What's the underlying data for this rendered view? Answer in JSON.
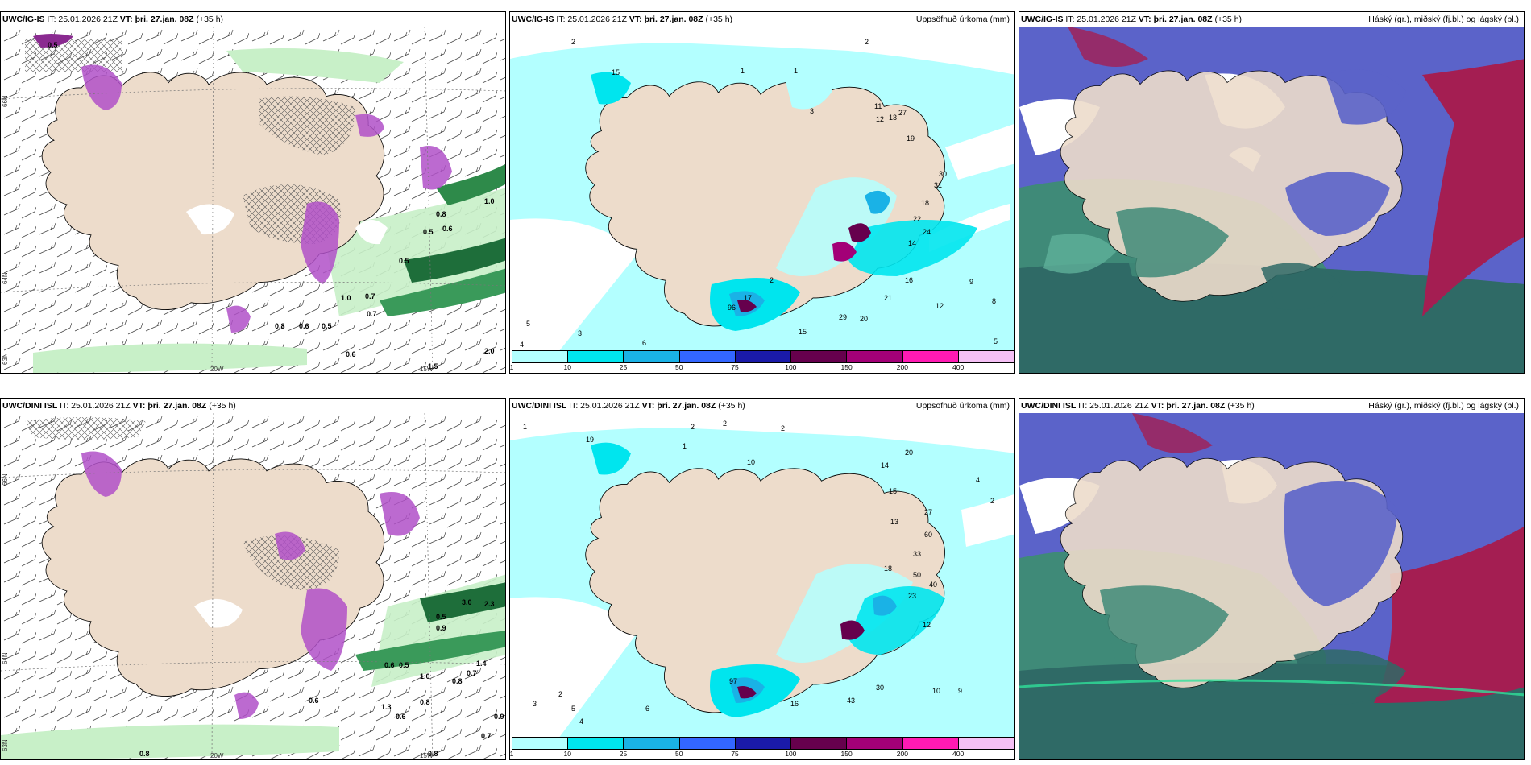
{
  "panels": {
    "top_left": {
      "title_model": "UWC/IG-IS",
      "title_it": "IT: 25.01.2026 21Z",
      "title_vt_label": "VT:",
      "title_vt": "þri. 27.jan. 08Z",
      "title_lead": "(+35 h)"
    },
    "top_mid": {
      "title_model": "UWC/IG-IS",
      "title_it": "IT: 25.01.2026 21Z",
      "title_vt_label": "VT:",
      "title_vt": "þri. 27.jan. 08Z",
      "title_lead": "(+35 h)",
      "field": "Uppsöfnuð úrkoma (mm)"
    },
    "top_right": {
      "title_model": "UWC/IG-IS",
      "title_it": "IT: 25.01.2026 21Z",
      "title_vt_label": "VT:",
      "title_vt": "þri. 27.jan. 08Z",
      "title_lead": "(+35 h)",
      "field": "Háský (gr.), miðský (fj.bl.) og lágský (bl.)"
    },
    "bot_left": {
      "title_model": "UWC/DINI ISL",
      "title_it": "IT: 25.01.2026 21Z",
      "title_vt_label": "VT:",
      "title_vt": "þri. 27.jan. 08Z",
      "title_lead": "(+35 h)"
    },
    "bot_mid": {
      "title_model": "UWC/DINI ISL",
      "title_it": "IT: 25.01.2026 21Z",
      "title_vt_label": "VT:",
      "title_vt": "þri. 27.jan. 08Z",
      "title_lead": "(+35 h)",
      "field": "Uppsöfnuð úrkoma (mm)"
    },
    "bot_right": {
      "title_model": "UWC/DINI ISL",
      "title_it": "IT: 25.01.2026 21Z",
      "title_vt_label": "VT:",
      "title_vt": "þri. 27.jan. 08Z",
      "title_lead": "(+35 h)",
      "field": "Háský (gr.), miðský (fj.bl.) og lágský (bl.)"
    }
  },
  "colorbar": {
    "colors": [
      "#b3ffff",
      "#00e5ee",
      "#1ab2e6",
      "#3366ff",
      "#1a1aa8",
      "#66004d",
      "#a30077",
      "#ff1ab3",
      "#f5c0f5"
    ],
    "ticks": [
      "1",
      "10",
      "25",
      "50",
      "75",
      "100",
      "150",
      "200",
      "400"
    ]
  },
  "axes": {
    "lon_20w": "20W",
    "lon_15w": "15W",
    "lat_66n": "66N",
    "lat_64n": "64N",
    "lat_63n": "63N"
  },
  "labels": {
    "tl_values": [
      "0.5",
      "1.0",
      "0.5",
      "0.7",
      "0.6",
      "0.8",
      "0.6",
      "0.5",
      "0.7",
      "0.5",
      "1.0",
      "0.6",
      "0.8",
      "2.0",
      "1.5"
    ],
    "bl_values": [
      "0.5",
      "0.9",
      "1.0",
      "0.6",
      "0.5",
      "0.8",
      "0.7",
      "1.4",
      "0.6",
      "0.8",
      "1.3",
      "0.6",
      "0.9",
      "0.7",
      "0.8",
      "0.8",
      "3.0",
      "2.3"
    ],
    "tm_values": [
      "2",
      "1",
      "15",
      "1",
      "3",
      "2",
      "11",
      "13",
      "27",
      "19",
      "12",
      "30",
      "31",
      "18",
      "22",
      "24",
      "14",
      "16",
      "2",
      "17",
      "96",
      "15",
      "29",
      "20",
      "21",
      "12",
      "9",
      "8",
      "5",
      "3",
      "4",
      "6",
      "5"
    ],
    "bm_values": [
      "1",
      "2",
      "2",
      "19",
      "2",
      "1",
      "10",
      "14",
      "20",
      "13",
      "27",
      "60",
      "33",
      "15",
      "4",
      "2",
      "18",
      "50",
      "40",
      "23",
      "12",
      "97",
      "16",
      "43",
      "30",
      "10",
      "9",
      "6",
      "5",
      "3",
      "2",
      "4"
    ]
  },
  "colors": {
    "land": "#eddccb",
    "white_cloud": "#ffffff",
    "green_light": "#c8f0c8",
    "green_dark": "#1e6e3a",
    "purple": "#b050c8",
    "precip_light": "#b3ffff",
    "cloud_high": "#5b63c9",
    "cloud_mid": "#a41e52",
    "cloud_low": "#3f8a78"
  }
}
